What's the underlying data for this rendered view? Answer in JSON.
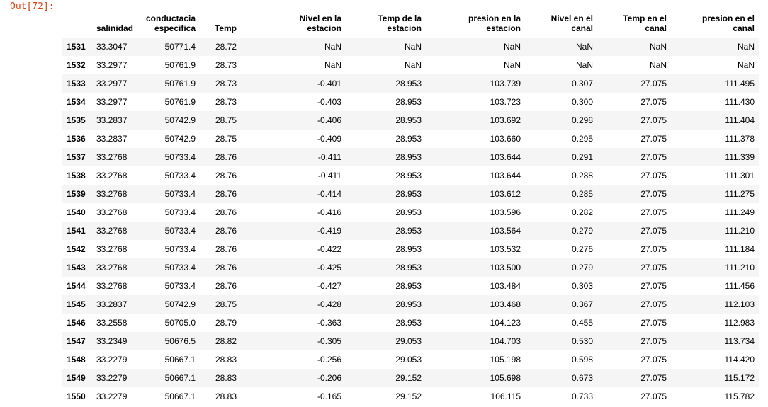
{
  "prompt": "Out[72]:",
  "columns": [
    {
      "line1": "salinidad",
      "line2": ""
    },
    {
      "line1": "conductacia",
      "line2": "especifica"
    },
    {
      "line1": "Temp",
      "line2": ""
    },
    {
      "line1": "Nivel en la",
      "line2": "estacion"
    },
    {
      "line1": "Temp de la",
      "line2": "estacion"
    },
    {
      "line1": "presion en la",
      "line2": "estacion"
    },
    {
      "line1": "Nivel en el",
      "line2": "canal"
    },
    {
      "line1": "Temp en el",
      "line2": "canal"
    },
    {
      "line1": "presion en el",
      "line2": "canal"
    }
  ],
  "rows": [
    {
      "index": "1531",
      "values": [
        "33.3047",
        "50771.4",
        "28.72",
        "NaN",
        "NaN",
        "NaN",
        "NaN",
        "NaN",
        "NaN"
      ]
    },
    {
      "index": "1532",
      "values": [
        "33.2977",
        "50761.9",
        "28.73",
        "NaN",
        "NaN",
        "NaN",
        "NaN",
        "NaN",
        "NaN"
      ]
    },
    {
      "index": "1533",
      "values": [
        "33.2977",
        "50761.9",
        "28.73",
        "-0.401",
        "28.953",
        "103.739",
        "0.307",
        "27.075",
        "111.495"
      ]
    },
    {
      "index": "1534",
      "values": [
        "33.2977",
        "50761.9",
        "28.73",
        "-0.403",
        "28.953",
        "103.723",
        "0.300",
        "27.075",
        "111.430"
      ]
    },
    {
      "index": "1535",
      "values": [
        "33.2837",
        "50742.9",
        "28.75",
        "-0.406",
        "28.953",
        "103.692",
        "0.298",
        "27.075",
        "111.404"
      ]
    },
    {
      "index": "1536",
      "values": [
        "33.2837",
        "50742.9",
        "28.75",
        "-0.409",
        "28.953",
        "103.660",
        "0.295",
        "27.075",
        "111.378"
      ]
    },
    {
      "index": "1537",
      "values": [
        "33.2768",
        "50733.4",
        "28.76",
        "-0.411",
        "28.953",
        "103.644",
        "0.291",
        "27.075",
        "111.339"
      ]
    },
    {
      "index": "1538",
      "values": [
        "33.2768",
        "50733.4",
        "28.76",
        "-0.411",
        "28.953",
        "103.644",
        "0.288",
        "27.075",
        "111.301"
      ]
    },
    {
      "index": "1539",
      "values": [
        "33.2768",
        "50733.4",
        "28.76",
        "-0.414",
        "28.953",
        "103.612",
        "0.285",
        "27.075",
        "111.275"
      ]
    },
    {
      "index": "1540",
      "values": [
        "33.2768",
        "50733.4",
        "28.76",
        "-0.416",
        "28.953",
        "103.596",
        "0.282",
        "27.075",
        "111.249"
      ]
    },
    {
      "index": "1541",
      "values": [
        "33.2768",
        "50733.4",
        "28.76",
        "-0.419",
        "28.953",
        "103.564",
        "0.279",
        "27.075",
        "111.210"
      ]
    },
    {
      "index": "1542",
      "values": [
        "33.2768",
        "50733.4",
        "28.76",
        "-0.422",
        "28.953",
        "103.532",
        "0.276",
        "27.075",
        "111.184"
      ]
    },
    {
      "index": "1543",
      "values": [
        "33.2768",
        "50733.4",
        "28.76",
        "-0.425",
        "28.953",
        "103.500",
        "0.279",
        "27.075",
        "111.210"
      ]
    },
    {
      "index": "1544",
      "values": [
        "33.2768",
        "50733.4",
        "28.76",
        "-0.427",
        "28.953",
        "103.484",
        "0.303",
        "27.075",
        "111.456"
      ]
    },
    {
      "index": "1545",
      "values": [
        "33.2837",
        "50742.9",
        "28.75",
        "-0.428",
        "28.953",
        "103.468",
        "0.367",
        "27.075",
        "112.103"
      ]
    },
    {
      "index": "1546",
      "values": [
        "33.2558",
        "50705.0",
        "28.79",
        "-0.363",
        "28.953",
        "104.123",
        "0.455",
        "27.075",
        "112.983"
      ]
    },
    {
      "index": "1547",
      "values": [
        "33.2349",
        "50676.5",
        "28.82",
        "-0.305",
        "29.053",
        "104.703",
        "0.530",
        "27.075",
        "113.734"
      ]
    },
    {
      "index": "1548",
      "values": [
        "33.2279",
        "50667.1",
        "28.83",
        "-0.256",
        "29.053",
        "105.198",
        "0.598",
        "27.075",
        "114.420"
      ]
    },
    {
      "index": "1549",
      "values": [
        "33.2279",
        "50667.1",
        "28.83",
        "-0.206",
        "29.152",
        "105.698",
        "0.673",
        "27.075",
        "115.172"
      ]
    },
    {
      "index": "1550",
      "values": [
        "33.2279",
        "50667.1",
        "28.83",
        "-0.165",
        "29.152",
        "106.115",
        "0.733",
        "27.075",
        "115.782"
      ]
    }
  ]
}
